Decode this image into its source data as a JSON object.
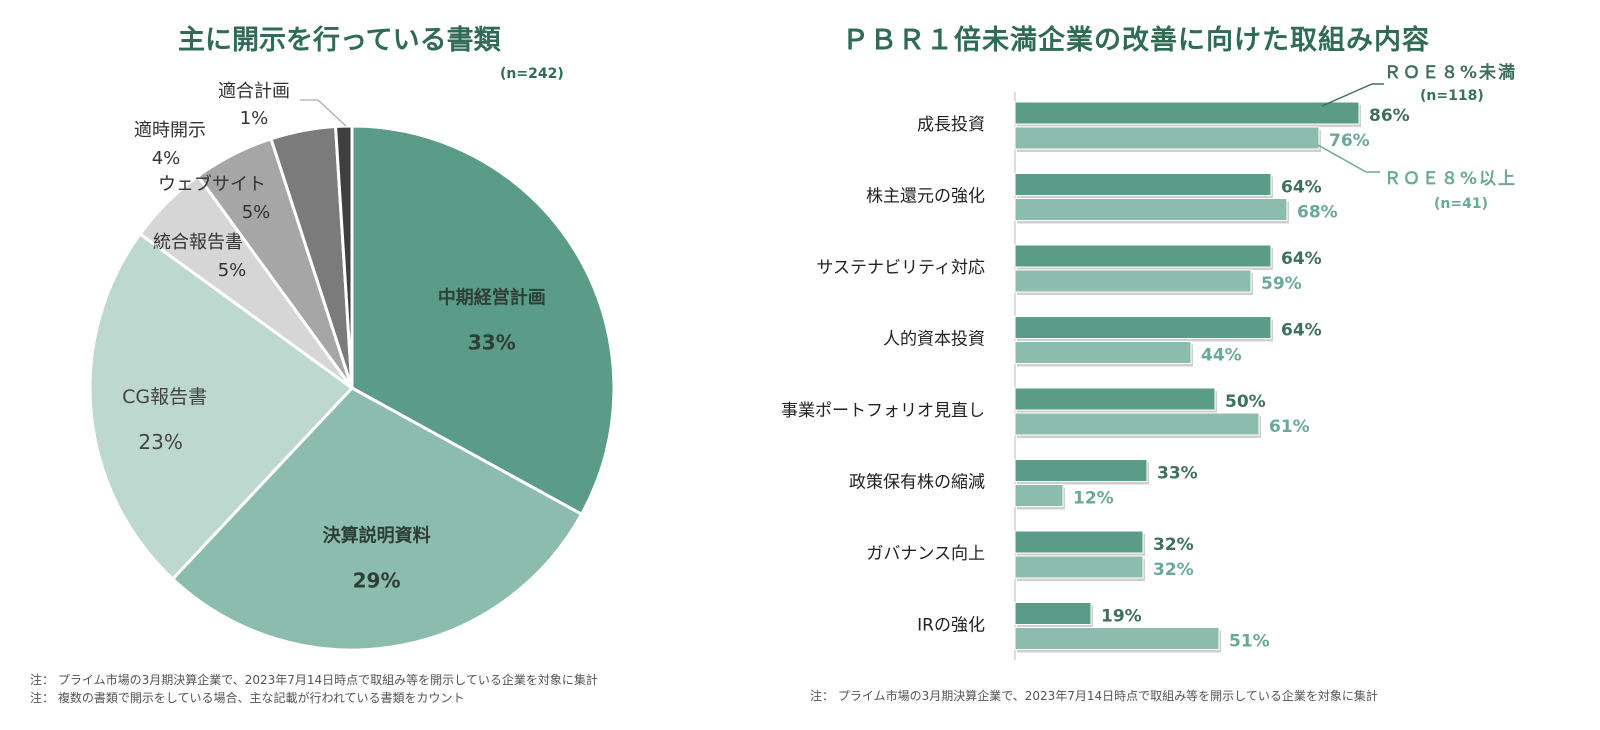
{
  "pie_chart": {
    "title": "主に開示を行っている書類",
    "n": "(n=242)",
    "notes": [
      "注： プライム市場の3月期決算企業で、2023年7月14日時点で取組み等を開示している企業を対象に集計",
      "注： 複数の書類で開示をしている場合、主な記載が行われている書類をカウント"
    ]
  },
  "bar_chart": {
    "title": "ＰＢＲ１倍未満企業の改善に向けた取組み内容",
    "legend": {
      "series1_name": "ＲＯＥ８%未満",
      "series1_n": "(n=118)",
      "series2_name": "ＲＯＥ８%以上",
      "series2_n": "(n=41)"
    },
    "note": "注： プライム市場の3月期決算企業で、2023年7月14日時点で取組み等を開示している企業を対象に集計"
  },
  "colors": {
    "title": "#2f6b55",
    "slice_midplan": "#5a9c87",
    "slice_kessan": "#8cbcae",
    "slice_cg": "#bcd8cf",
    "slice_togo": "#d6d6d6",
    "slice_web": "#a6a6a6",
    "slice_tekiji": "#7b7b7b",
    "slice_tekigo": "#3f3f3f",
    "bar_series1": "#5a9c87",
    "bar_series2": "#8cbcae",
    "label_series1": "#3f6f5f",
    "label_series2": "#6aa89a"
  },
  "chart_data": [
    {
      "type": "pie",
      "title": "主に開示を行っている書類",
      "categories": [
        "中期経営計画",
        "決算説明資料",
        "CG報告書",
        "統合報告書",
        "ウェブサイト",
        "適時開示",
        "適合計画"
      ],
      "values": [
        33,
        29,
        23,
        5,
        5,
        4,
        1
      ],
      "labels": [
        "33%",
        "29%",
        "23%",
        "5%",
        "5%",
        "4%",
        "1%"
      ]
    },
    {
      "type": "bar",
      "orientation": "horizontal",
      "title": "ＰＢＲ１倍未満企業の改善に向けた取組み内容",
      "categories": [
        "成長投資",
        "株主還元の強化",
        "サステナビリティ対応",
        "人的資本投資",
        "事業ポートフォリオ見直し",
        "政策保有株の縮減",
        "ガバナンス向上",
        "IRの強化"
      ],
      "series": [
        {
          "name": "ＲＯＥ８%未満",
          "values": [
            86,
            64,
            64,
            64,
            50,
            33,
            32,
            19
          ],
          "labels": [
            "86%",
            "64%",
            "64%",
            "64%",
            "50%",
            "33%",
            "32%",
            "19%"
          ]
        },
        {
          "name": "ＲＯＥ８%以上",
          "values": [
            76,
            68,
            59,
            44,
            61,
            12,
            32,
            51
          ],
          "labels": [
            "76%",
            "68%",
            "59%",
            "44%",
            "61%",
            "12%",
            "32%",
            "51%"
          ]
        }
      ],
      "xlim": [
        0,
        100
      ]
    }
  ]
}
